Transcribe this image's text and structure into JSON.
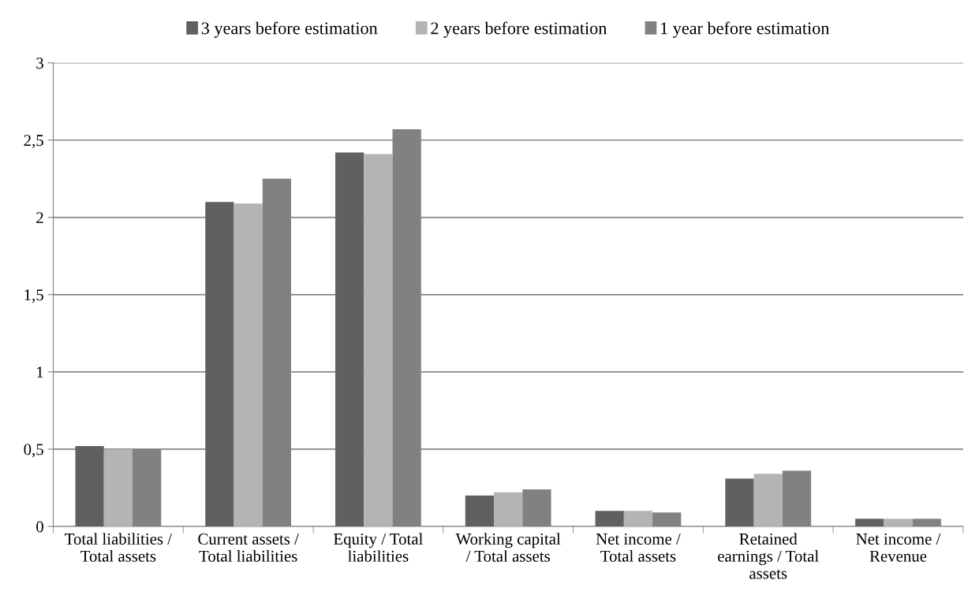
{
  "chart_data": {
    "type": "bar",
    "categories": [
      "Total liabilities / Total assets",
      "Current assets / Total liabilities",
      "Equity / Total liabilities",
      "Working capital / Total assets",
      "Net income / Total assets",
      "Retained earnings / Total assets",
      "Net income / Revenue"
    ],
    "series": [
      {
        "name": "3 years before estimation",
        "color": "#606060",
        "values": [
          0.52,
          2.1,
          2.42,
          0.2,
          0.1,
          0.31,
          0.05
        ]
      },
      {
        "name": "2 years before estimation",
        "color": "#b4b4b4",
        "values": [
          0.5,
          2.09,
          2.41,
          0.22,
          0.1,
          0.34,
          0.05
        ]
      },
      {
        "name": "1 year before estimation",
        "color": "#818181",
        "values": [
          0.5,
          2.25,
          2.57,
          0.24,
          0.09,
          0.36,
          0.05
        ]
      }
    ],
    "ylim": [
      0,
      3
    ],
    "yticks": [
      0,
      {
        "value": 0.5,
        "label": "0,5"
      },
      1,
      {
        "value": 1.5,
        "label": "1,5"
      },
      2,
      {
        "value": 2.5,
        "label": "2,5"
      },
      3
    ],
    "grid": "y",
    "legend": "top"
  }
}
